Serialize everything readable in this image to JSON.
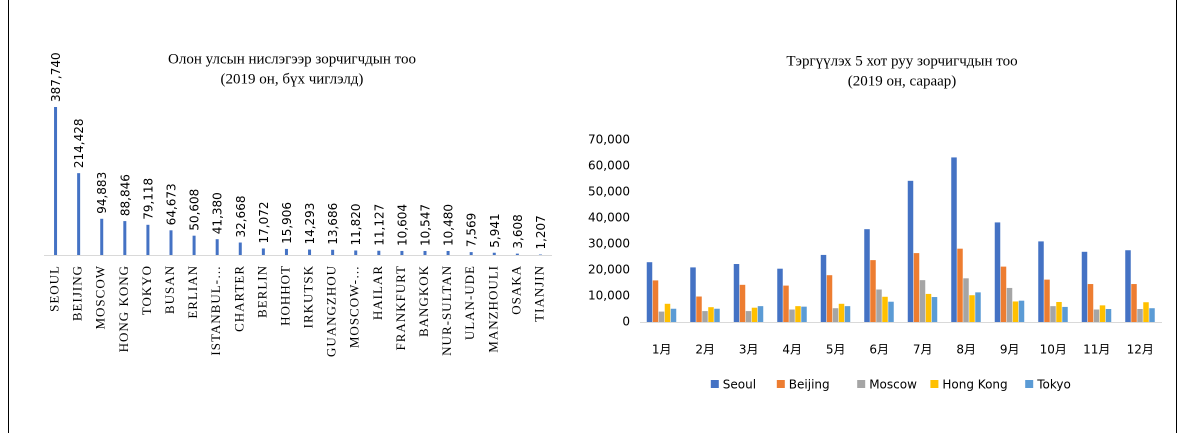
{
  "chart_data": [
    {
      "type": "bar",
      "title": "Олон улсын нислэгээр зорчигчдын тоо",
      "subtitle": "(2019 он, бүх чиглэлд)",
      "categories": [
        "SEOUL",
        "BEIJING",
        "MOSCOW",
        "HONG KONG",
        "TOKYO",
        "BUSAN",
        "ERLIAN",
        "ISTANBUL-…",
        "CHARTER",
        "BERLIN",
        "HOHHOT",
        "IRKUTSK",
        "GUANGZHOU",
        "MOSCOW-…",
        "HAILAR",
        "FRANKFURT",
        "BANGKOK",
        "NUR-SULTAN",
        "ULAN-UDE",
        "MANZHOULI",
        "OSAKA",
        "TIANJIN"
      ],
      "values": [
        387740,
        214428,
        94883,
        88846,
        79118,
        64673,
        50608,
        41380,
        32668,
        17072,
        15906,
        14293,
        13686,
        11820,
        11127,
        10604,
        10547,
        10480,
        7569,
        5941,
        3608,
        1207
      ],
      "value_labels": [
        "387,740",
        "214,428",
        "94,883",
        "88,846",
        "79,118",
        "64,673",
        "50,608",
        "41,380",
        "32,668",
        "17,072",
        "15,906",
        "14,293",
        "13,686",
        "11,820",
        "11,127",
        "10,604",
        "10,547",
        "10,480",
        "7,569",
        "5,941",
        "3,608",
        "1,207"
      ],
      "color": "#4472c4"
    },
    {
      "type": "grouped_bar",
      "title": "Тэргүүлэх 5 хот руу зорчигчдын тоо",
      "subtitle": "(2019 он, сараар)",
      "categories": [
        "1月",
        "2月",
        "3月",
        "4月",
        "5月",
        "6月",
        "7月",
        "8月",
        "9月",
        "10月",
        "11月",
        "12月"
      ],
      "ylim": [
        0,
        70000
      ],
      "yticks": [
        0,
        {
          "value": 10000,
          "label": "10,000"
        },
        {
          "value": 20000,
          "label": "20,000"
        },
        {
          "value": 30000,
          "label": "30,000"
        },
        {
          "value": 40000,
          "label": "40,000"
        },
        {
          "value": 50000,
          "label": "50,000"
        },
        {
          "value": 60000,
          "label": "60,000"
        },
        {
          "value": 70000,
          "label": "70,000"
        }
      ],
      "legend": "bottom",
      "series": [
        {
          "name": "Seoul",
          "color": "#4472c4",
          "values": [
            23000,
            21000,
            22300,
            20500,
            25800,
            35700,
            54300,
            63300,
            38300,
            31000,
            27000,
            27600
          ]
        },
        {
          "name": "Beijing",
          "color": "#ed7d31",
          "values": [
            16000,
            9800,
            14300,
            14000,
            18000,
            23800,
            26500,
            28200,
            21300,
            16300,
            14600,
            14600
          ]
        },
        {
          "name": "Moscow",
          "color": "#a5a5a5",
          "values": [
            4000,
            4200,
            4200,
            4800,
            5300,
            12500,
            16100,
            16800,
            13100,
            6100,
            4800,
            5000
          ]
        },
        {
          "name": "Hong Kong",
          "color": "#ffc000",
          "values": [
            7000,
            5700,
            5500,
            6100,
            7000,
            9700,
            10800,
            10300,
            7900,
            7700,
            6400,
            7600
          ]
        },
        {
          "name": "Tokyo",
          "color": "#5b9bd5",
          "values": [
            5100,
            5100,
            6100,
            5900,
            6100,
            7800,
            9600,
            11400,
            8200,
            5800,
            5000,
            5300
          ]
        }
      ]
    }
  ]
}
